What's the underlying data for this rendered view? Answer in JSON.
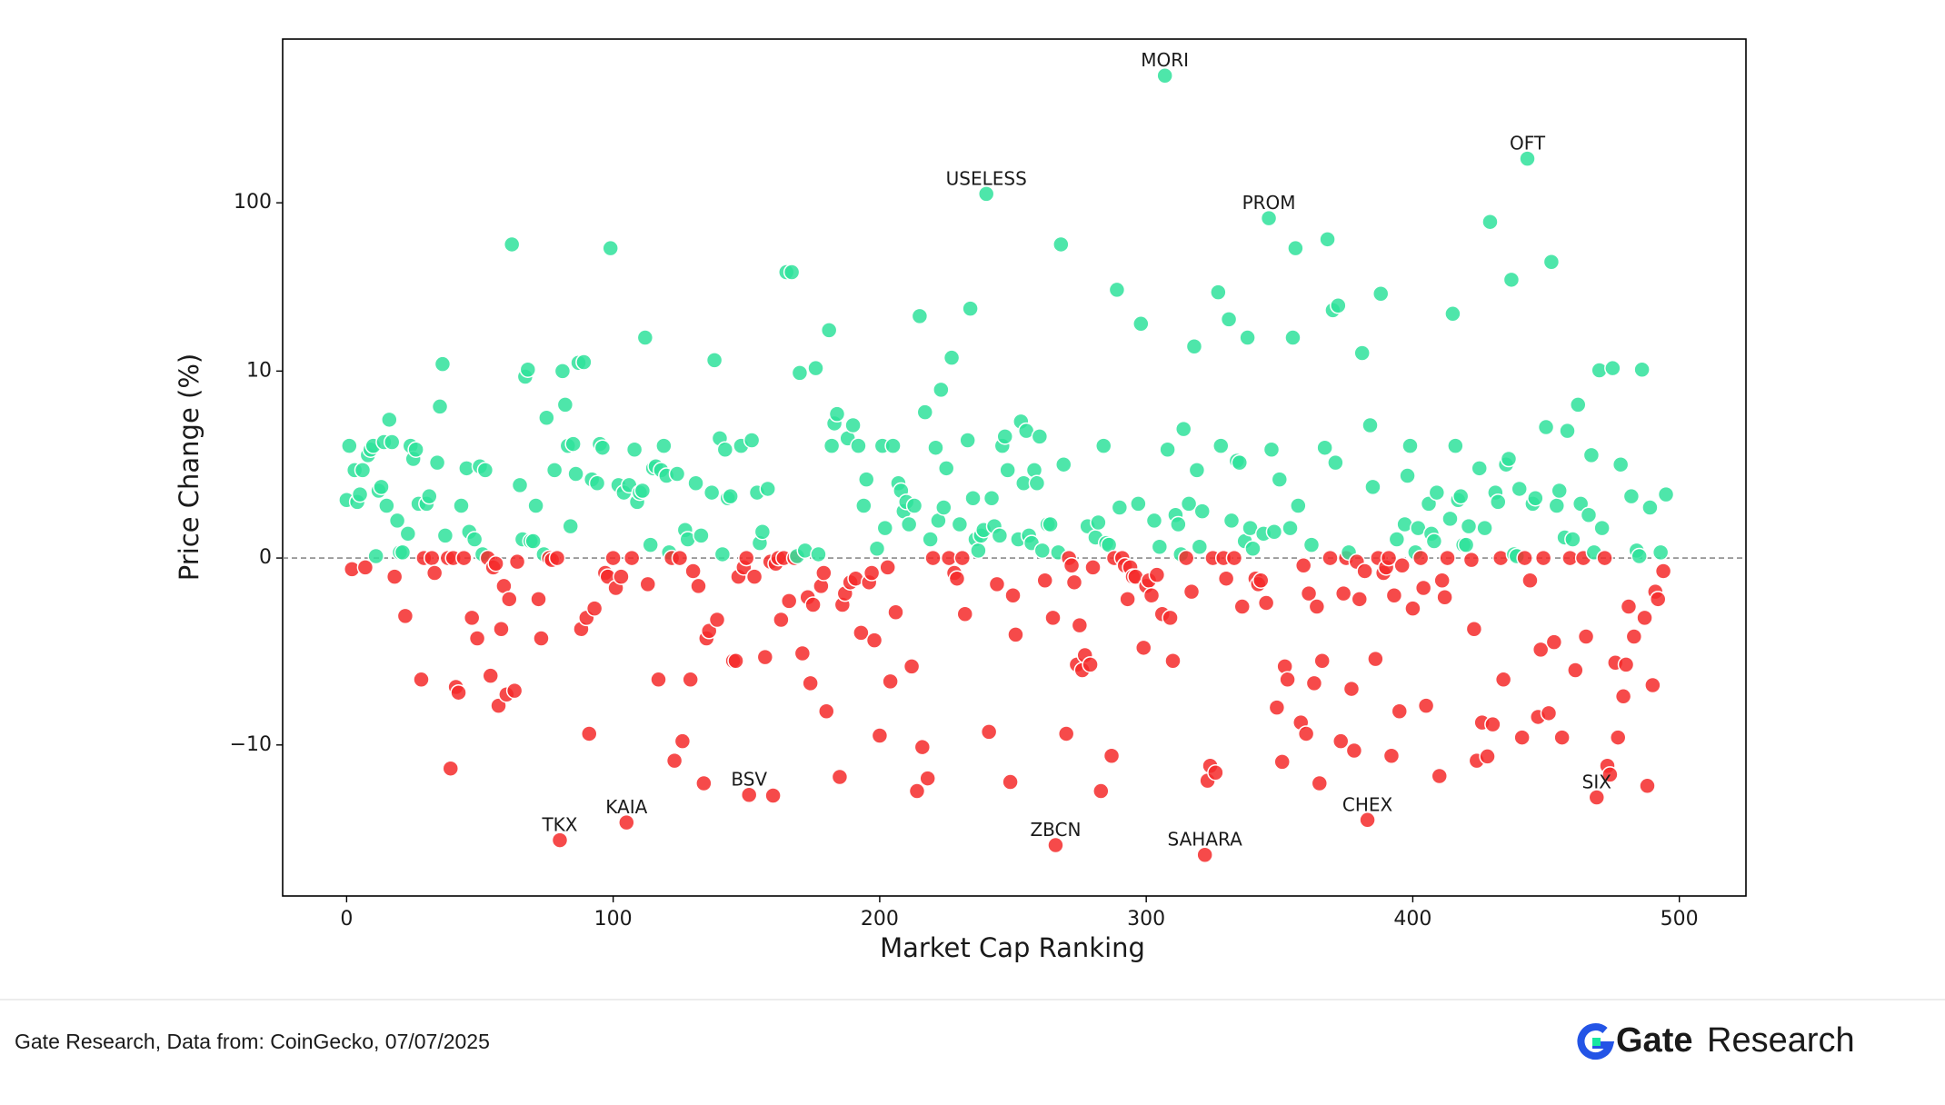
{
  "chart_data": {
    "type": "scatter",
    "x_label": "Market Cap Ranking",
    "y_label": "Price Change (%)",
    "yscale": "symlog",
    "linthresh": 10,
    "xlim": [
      -24,
      525
    ],
    "ylim": [
      -79,
      940
    ],
    "xticks": [
      0,
      100,
      200,
      300,
      400,
      500
    ],
    "yticks": [
      {
        "value": -10,
        "label": "−10"
      },
      0,
      10,
      100
    ],
    "hline": 0,
    "positive_color": "#2fe29b",
    "negative_color": "#f52a2a",
    "x": [
      0,
      1,
      2,
      3,
      4,
      5,
      6,
      7,
      8,
      9,
      10,
      11,
      12,
      13,
      14,
      15,
      16,
      17,
      18,
      19,
      20,
      21,
      22,
      23,
      24,
      25,
      26,
      27,
      28,
      29,
      30,
      31,
      32,
      33,
      34,
      35,
      36,
      37,
      38,
      39,
      40,
      41,
      42,
      43,
      44,
      45,
      46,
      47,
      48,
      49,
      50,
      51,
      52,
      53,
      54,
      55,
      56,
      57,
      58,
      59,
      60,
      61,
      62,
      63,
      64,
      65,
      66,
      67,
      68,
      69,
      70,
      71,
      72,
      73,
      74,
      75,
      76,
      77,
      78,
      79,
      80,
      81,
      82,
      83,
      84,
      85,
      86,
      87,
      88,
      89,
      90,
      91,
      92,
      93,
      94,
      95,
      96,
      97,
      98,
      99,
      100,
      101,
      102,
      103,
      104,
      105,
      106,
      107,
      108,
      109,
      110,
      111,
      112,
      113,
      114,
      115,
      116,
      117,
      118,
      119,
      120,
      121,
      122,
      123,
      124,
      125,
      126,
      127,
      128,
      129,
      130,
      131,
      132,
      133,
      134,
      135,
      136,
      137,
      138,
      139,
      140,
      141,
      142,
      143,
      144,
      145,
      146,
      147,
      148,
      149,
      150,
      151,
      152,
      153,
      154,
      155,
      156,
      157,
      158,
      159,
      160,
      161,
      162,
      163,
      164,
      165,
      166,
      167,
      168,
      169,
      170,
      171,
      172,
      173,
      174,
      175,
      176,
      177,
      178,
      179,
      180,
      181,
      182,
      183,
      184,
      185,
      186,
      187,
      188,
      189,
      190,
      191,
      192,
      193,
      194,
      195,
      196,
      197,
      198,
      199,
      200,
      201,
      202,
      203,
      204,
      205,
      206,
      207,
      208,
      209,
      210,
      211,
      212,
      213,
      214,
      215,
      216,
      217,
      218,
      219,
      220,
      221,
      222,
      223,
      224,
      225,
      226,
      227,
      228,
      229,
      230,
      231,
      232,
      233,
      234,
      235,
      236,
      237,
      238,
      239,
      240,
      241,
      242,
      243,
      244,
      245,
      246,
      247,
      248,
      249,
      250,
      251,
      252,
      253,
      254,
      255,
      256,
      257,
      258,
      259,
      260,
      261,
      262,
      263,
      264,
      265,
      266,
      267,
      268,
      269,
      270,
      271,
      272,
      273,
      274,
      275,
      276,
      277,
      278,
      279,
      280,
      281,
      282,
      283,
      284,
      285,
      286,
      287,
      288,
      289,
      290,
      291,
      292,
      293,
      294,
      295,
      296,
      297,
      298,
      299,
      300,
      301,
      302,
      303,
      304,
      305,
      306,
      307,
      308,
      309,
      310,
      311,
      312,
      313,
      314,
      315,
      316,
      317,
      318,
      319,
      320,
      321,
      322,
      323,
      324,
      325,
      326,
      327,
      328,
      329,
      330,
      331,
      332,
      333,
      334,
      335,
      336,
      337,
      338,
      339,
      340,
      341,
      342,
      343,
      344,
      345,
      346,
      347,
      348,
      349,
      350,
      351,
      352,
      353,
      354,
      355,
      356,
      357,
      358,
      359,
      360,
      361,
      362,
      363,
      364,
      365,
      366,
      367,
      368,
      369,
      370,
      371,
      372,
      373,
      374,
      375,
      376,
      377,
      378,
      379,
      380,
      381,
      382,
      383,
      384,
      385,
      386,
      387,
      388,
      389,
      390,
      391,
      392,
      393,
      394,
      395,
      396,
      397,
      398,
      399,
      400,
      401,
      402,
      403,
      404,
      405,
      406,
      407,
      408,
      409,
      410,
      411,
      412,
      413,
      414,
      415,
      416,
      417,
      418,
      419,
      420,
      421,
      422,
      423,
      424,
      425,
      426,
      427,
      428,
      429,
      430,
      431,
      432,
      433,
      434,
      435,
      436,
      437,
      438,
      439,
      440,
      441,
      442,
      443,
      444,
      445,
      446,
      447,
      448,
      449,
      450,
      451,
      452,
      453,
      454,
      455,
      456,
      457,
      458,
      459,
      460,
      461,
      462,
      463,
      464,
      465,
      466,
      467,
      468,
      469,
      470,
      471,
      472,
      473,
      474,
      475,
      476,
      477,
      478,
      479,
      480,
      481,
      482,
      483,
      484,
      485,
      486,
      487,
      488,
      489,
      490,
      491,
      492,
      493,
      494,
      495
    ],
    "values": [
      3.1,
      6.0,
      -0.6,
      4.7,
      3.0,
      3.4,
      4.7,
      -0.5,
      5.5,
      5.8,
      6.0,
      0.1,
      3.6,
      3.8,
      6.2,
      2.8,
      7.4,
      6.2,
      -1.0,
      2.0,
      0.3,
      0.3,
      -3.1,
      1.3,
      6.0,
      5.3,
      5.8,
      2.9,
      -6.5,
      0,
      2.9,
      3.3,
      0,
      -0.8,
      5.1,
      8.1,
      11,
      1.2,
      0,
      -13.8,
      0,
      -6.9,
      -7.2,
      2.8,
      0,
      4.8,
      1.4,
      -3.2,
      1.0,
      -4.3,
      4.9,
      0.2,
      4.7,
      0,
      -6.3,
      -0.5,
      -0.3,
      -7.9,
      -3.8,
      -1.5,
      -7.3,
      -2.2,
      56.6,
      -7.1,
      -0.2,
      3.9,
      1.0,
      9.7,
      10.2,
      0.9,
      0.9,
      2.8,
      -2.2,
      -4.3,
      0.2,
      7.5,
      0,
      -0.1,
      4.7,
      0,
      -36.8,
      10,
      8.2,
      6.0,
      1.7,
      6.1,
      4.5,
      11.2,
      -3.8,
      11.3,
      -3.2,
      -9.4,
      4.2,
      -2.7,
      4.0,
      6.1,
      5.9,
      -0.8,
      -1.0,
      53.7,
      0,
      -1.6,
      3.9,
      -1.0,
      3.5,
      -28.9,
      3.9,
      0,
      5.8,
      3.0,
      3.5,
      3.6,
      15.8,
      -1.4,
      0.7,
      4.8,
      4.9,
      -6.5,
      4.7,
      6.0,
      4.4,
      0.3,
      0,
      -12.4,
      4.5,
      0,
      -9.8,
      1.5,
      1.0,
      -6.5,
      -0.7,
      4.0,
      -1.5,
      1.2,
      -16.9,
      -4.3,
      -3.9,
      3.5,
      11.6,
      -3.3,
      6.4,
      0.2,
      5.8,
      3.2,
      3.3,
      -5.5,
      -5.5,
      -1.0,
      6.0,
      -0.5,
      0,
      -19.8,
      6.3,
      -1.0,
      3.5,
      0.8,
      1.4,
      -5.3,
      3.7,
      -0.2,
      -20,
      -0.3,
      0,
      -3.3,
      0,
      38.7,
      -2.3,
      38.7,
      0,
      0.1,
      9.9,
      -5.1,
      0.4,
      -2.1,
      -6.7,
      -2.5,
      10.4,
      0.2,
      -1.5,
      -0.8,
      -8.2,
      17.5,
      6.0,
      7.2,
      7.7,
      -15.5,
      -2.5,
      -1.9,
      6.4,
      -1.3,
      7.1,
      -1.1,
      6.0,
      -4.0,
      2.8,
      4.2,
      -1.3,
      -0.8,
      -4.4,
      0.5,
      -9.5,
      6.0,
      1.6,
      -0.5,
      -6.6,
      6.0,
      -2.9,
      4.0,
      3.6,
      2.5,
      3.0,
      1.8,
      -5.8,
      2.8,
      -18.8,
      21.2,
      -10.3,
      7.8,
      -15.8,
      1.0,
      0,
      5.9,
      2.0,
      9.0,
      2.7,
      4.8,
      0,
      12.0,
      -0.8,
      -1.1,
      1.8,
      0,
      -3.0,
      6.3,
      23.5,
      3.2,
      1.0,
      0.4,
      1.2,
      1.5,
      113,
      -9.3,
      3.2,
      1.7,
      -1.4,
      1.2,
      6.0,
      6.5,
      4.7,
      -16.6,
      -2.0,
      -4.1,
      1.0,
      7.3,
      4.0,
      6.8,
      1.2,
      0.8,
      4.7,
      4.0,
      6.5,
      0.4,
      -1.2,
      1.8,
      1.8,
      -3.2,
      -39.4,
      0.3,
      56.6,
      5.0,
      -9.4,
      0,
      -0.4,
      -1.3,
      -5.7,
      -3.6,
      -6.0,
      -5.2,
      1.7,
      -5.7,
      -0.5,
      1.1,
      1.9,
      -18.8,
      6.0,
      0.8,
      0.7,
      -11.6,
      0,
      30.4,
      2.7,
      0,
      -0.4,
      -2.2,
      -0.5,
      -1.0,
      -1.0,
      2.9,
      19.1,
      -4.8,
      -1.5,
      -1.2,
      -2.0,
      2.0,
      -0.9,
      0.6,
      -3.0,
      570,
      5.8,
      -3.2,
      -5.5,
      2.3,
      1.8,
      0.2,
      6.9,
      0,
      2.9,
      -1.8,
      14.0,
      4.7,
      0.6,
      2.5,
      -45,
      -16.3,
      -13.3,
      0,
      -14.6,
      29.4,
      6.0,
      0,
      -1.1,
      20.3,
      2.0,
      0,
      5.2,
      5.1,
      -2.6,
      0.9,
      15.8,
      1.6,
      0.5,
      -1.1,
      -1.4,
      -1.2,
      1.3,
      -2.4,
      81,
      5.8,
      1.4,
      -8.0,
      4.2,
      -12.6,
      -5.8,
      -6.5,
      1.6,
      15.8,
      53.7,
      2.8,
      -8.8,
      -0.4,
      -9.4,
      -1.9,
      0.7,
      -6.7,
      -2.6,
      -16.9,
      -5.5,
      5.9,
      60.7,
      0,
      23.0,
      5.1,
      24.5,
      -9.8,
      -1.9,
      0,
      0.3,
      -7.0,
      -10.8,
      -0.2,
      -2.2,
      12.8,
      -0.7,
      -27.9,
      7.1,
      3.8,
      -5.4,
      0,
      28.8,
      -0.8,
      -0.5,
      0,
      -11.6,
      -2.0,
      1.0,
      -8.2,
      -0.4,
      1.8,
      4.4,
      6.0,
      -2.7,
      0.3,
      1.6,
      0,
      -1.6,
      -7.9,
      2.9,
      1.3,
      0.9,
      3.5,
      -15.3,
      -1.2,
      -2.1,
      0,
      2.1,
      21.9,
      6.0,
      3.1,
      3.3,
      0.7,
      0.7,
      1.7,
      -0.1,
      -3.8,
      -12.4,
      4.8,
      -8.8,
      1.6,
      -11.7,
      77,
      -8.9,
      3.5,
      3.0,
      0,
      -6.5,
      5.0,
      5.3,
      34.9,
      0.2,
      0.1,
      3.7,
      -9.6,
      0,
      183,
      -1.2,
      2.9,
      3.2,
      -8.5,
      -4.9,
      0,
      7.0,
      -8.3,
      44.5,
      -4.5,
      2.8,
      3.6,
      -9.6,
      1.1,
      6.8,
      0,
      1.0,
      -6.0,
      8.2,
      2.9,
      0,
      -4.2,
      2.3,
      5.5,
      0.3,
      -20.5,
      10.1,
      1.6,
      0,
      -13.3,
      -15,
      10.4,
      -5.6,
      -9.6,
      5.0,
      -7.4,
      -5.7,
      -2.6,
      3.3,
      -4.2,
      0.4,
      0.1,
      10.2,
      -3.2,
      -17.5,
      2.7,
      -6.8,
      -1.8,
      -2.2,
      0.3,
      -0.7,
      3.4
    ],
    "annotations": [
      {
        "text": "MORI",
        "x": 307,
        "y": 570
      },
      {
        "text": "OFT",
        "x": 443,
        "y": 183
      },
      {
        "text": "USELESS",
        "x": 240,
        "y": 113
      },
      {
        "text": "PROM",
        "x": 346,
        "y": 81
      },
      {
        "text": "BSV",
        "x": 151,
        "y": -19.8
      },
      {
        "text": "KAIA",
        "x": 105,
        "y": -28.9
      },
      {
        "text": "TKX",
        "x": 80,
        "y": -36.8
      },
      {
        "text": "ZBCN",
        "x": 266,
        "y": -39.4
      },
      {
        "text": "SAHARA",
        "x": 322,
        "y": -45
      },
      {
        "text": "CHEX",
        "x": 383,
        "y": -27.9
      },
      {
        "text": "SIX",
        "x": 469,
        "y": -20.5
      }
    ]
  },
  "footer": {
    "source": "Gate Research, Data from: CoinGecko, 07/07/2025",
    "logo_bold": "Gate",
    "logo_light": "Research"
  }
}
